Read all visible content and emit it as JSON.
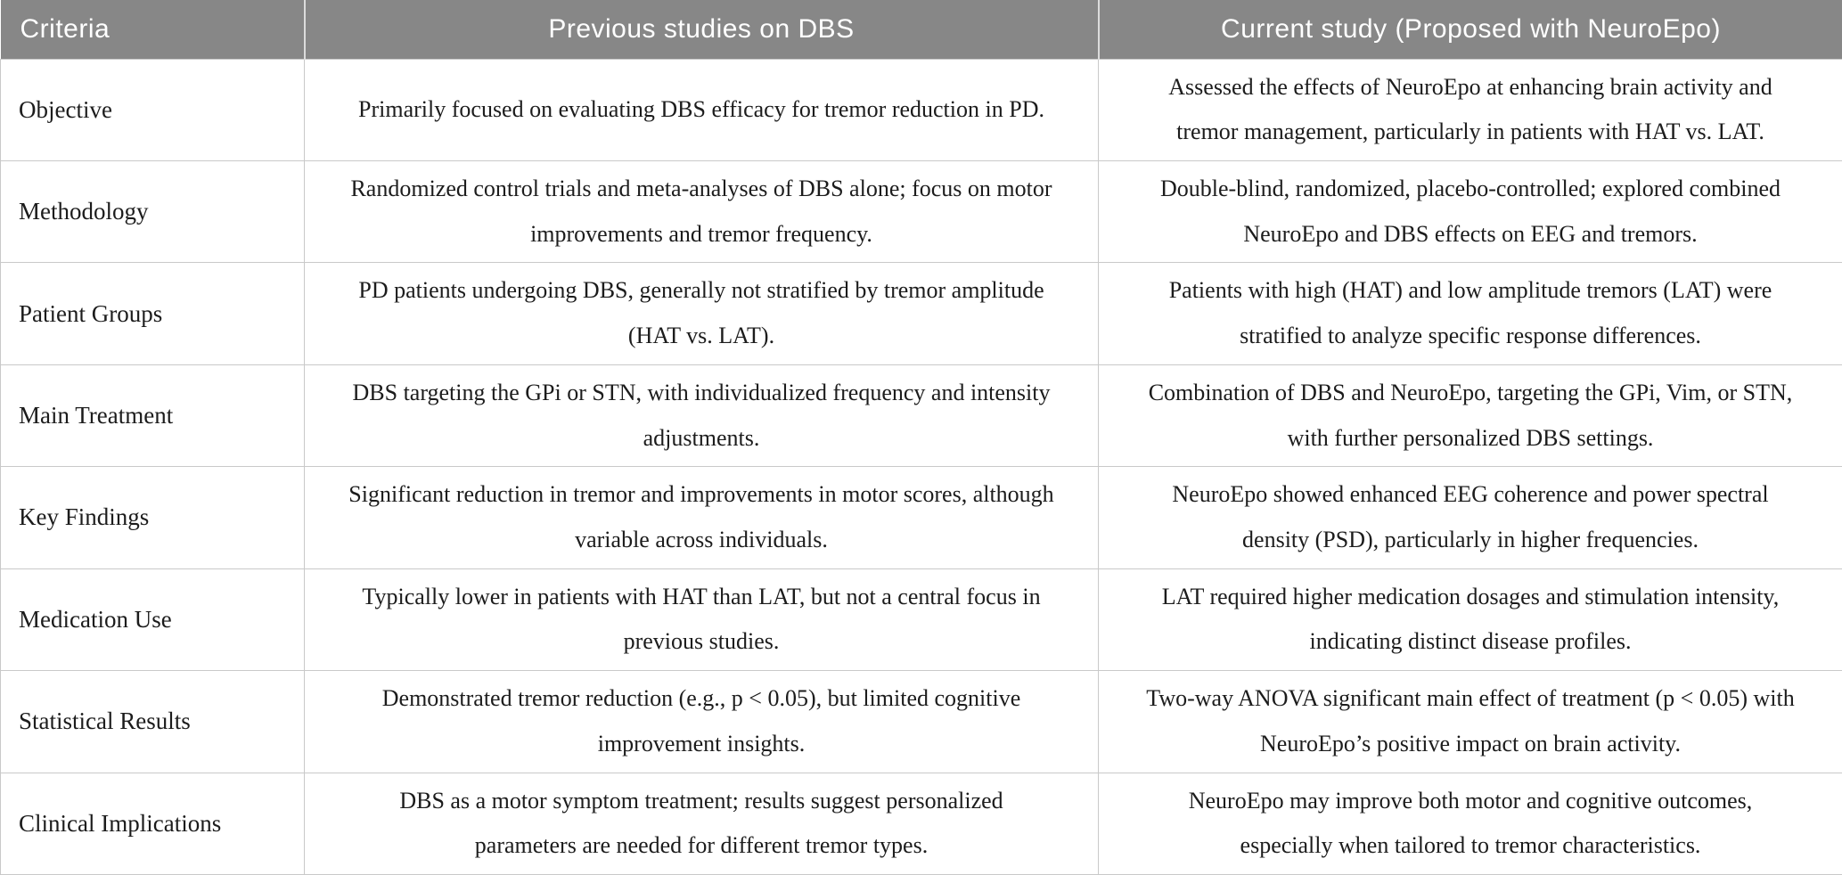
{
  "table": {
    "columns": [
      "Criteria",
      "Previous studies on DBS",
      "Current study (Proposed with NeuroEpo)"
    ],
    "rows": [
      {
        "criteria": "Objective",
        "previous": "Primarily focused on evaluating DBS efficacy for tremor reduction in PD.",
        "current": "Assessed the effects of NeuroEpo at enhancing brain activity and tremor management, particularly in patients with HAT vs. LAT."
      },
      {
        "criteria": "Methodology",
        "previous": "Randomized control trials and meta-analyses of DBS alone; focus on motor improvements and tremor frequency.",
        "current": "Double-blind, randomized, placebo-controlled; explored combined NeuroEpo and DBS effects on EEG and tremors."
      },
      {
        "criteria": "Patient Groups",
        "previous": "PD patients undergoing DBS, generally not stratified by tremor amplitude (HAT vs. LAT).",
        "current": "Patients with high (HAT) and low amplitude tremors (LAT) were stratified to analyze specific response differences."
      },
      {
        "criteria": "Main Treatment",
        "previous": "DBS targeting the GPi or STN, with individualized frequency and intensity adjustments.",
        "current": "Combination of DBS and NeuroEpo, targeting the GPi, Vim, or STN, with further personalized DBS settings."
      },
      {
        "criteria": "Key Findings",
        "previous": "Significant reduction in tremor and improvements in motor scores, although variable across individuals.",
        "current": "NeuroEpo showed enhanced EEG coherence and power spectral density (PSD), particularly in higher frequencies."
      },
      {
        "criteria": "Medication Use",
        "previous": "Typically lower in patients with HAT than LAT, but not a central focus in previous studies.",
        "current": "LAT required higher medication dosages and stimulation intensity, indicating distinct disease profiles."
      },
      {
        "criteria": "Statistical Results",
        "previous": "Demonstrated tremor reduction (e.g., p < 0.05), but limited cognitive improvement insights.",
        "current": "Two-way ANOVA significant main effect of treatment (p < 0.05) with NeuroEpo’s positive impact on brain activity."
      },
      {
        "criteria": "Clinical Implications",
        "previous": "DBS as a motor symptom treatment; results suggest personalized parameters are needed for different tremor types.",
        "current": "NeuroEpo may improve both motor and cognitive outcomes, especially when tailored to tremor characteristics."
      }
    ],
    "colors": {
      "header_bg": "#878787",
      "header_text": "#ffffff",
      "body_text": "#1c1c1c",
      "grid_line": "#c9c9c9"
    }
  }
}
